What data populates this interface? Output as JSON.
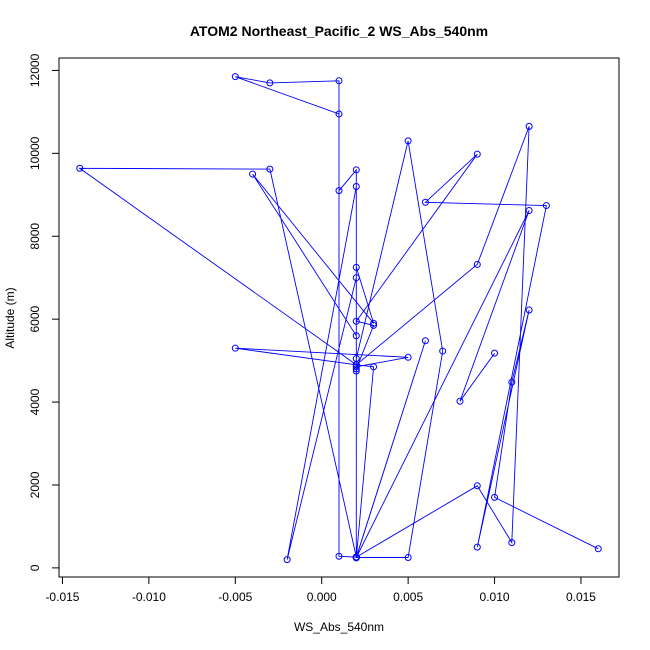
{
  "chart_data": {
    "type": "line",
    "title": "ATOM2 Northeast_Pacific_2 WS_Abs_540nm",
    "xlabel": "WS_Abs_540nm",
    "ylabel": "Altitude (m)",
    "xlim": [
      -0.0152,
      0.0172
    ],
    "ylim": [
      -220,
      12300
    ],
    "xticks": [
      -0.015,
      -0.01,
      -0.005,
      0.0,
      0.005,
      0.01,
      0.015
    ],
    "xtick_labels": [
      "-0.015",
      "-0.010",
      "-0.005",
      "0.000",
      "0.005",
      "0.010",
      "0.015"
    ],
    "yticks": [
      0,
      2000,
      4000,
      6000,
      8000,
      10000,
      12000
    ],
    "ytick_labels": [
      "0",
      "2000",
      "4000",
      "6000",
      "8000",
      "10000",
      "12000"
    ],
    "series_color": "#0000ff",
    "grid": false,
    "marker": "open-circle",
    "series": [
      {
        "x": [
          0.016,
          0.01,
          0.011,
          0.012,
          0.009,
          0.013,
          0.006,
          0.009,
          0.002,
          0.003,
          0.002,
          0.002,
          0.002,
          -0.002,
          0.002,
          0.002,
          0.003,
          -0.004,
          0.002,
          0.002,
          0.002,
          0.001,
          0.001,
          -0.003,
          -0.005,
          0.001,
          0.001,
          0.002,
          0.002,
          0.005,
          0.007,
          0.005,
          0.002,
          0.002,
          -0.003,
          -0.014,
          0.002,
          -0.005,
          0.005,
          0.002,
          0.002,
          0.009,
          0.011,
          0.012,
          0.009,
          0.002,
          0.003,
          0.002,
          0.002,
          0.006,
          0.002,
          0.002,
          0.012,
          0.008,
          0.01
        ],
        "y": [
          460,
          1700,
          4480,
          6220,
          500,
          8740,
          8820,
          9980,
          5950,
          5850,
          4800,
          4750,
          9200,
          200,
          7000,
          7250,
          5900,
          9500,
          5600,
          260,
          260,
          280,
          11750,
          11700,
          11850,
          10950,
          9100,
          9600,
          5050,
          10300,
          5230,
          250,
          250,
          260,
          9620,
          9640,
          4900,
          5300,
          5080,
          4850,
          260,
          1980,
          610,
          10650,
          7320,
          4900,
          4850,
          240,
          250,
          5480,
          260,
          250,
          8620,
          4020,
          5180
        ]
      }
    ]
  }
}
